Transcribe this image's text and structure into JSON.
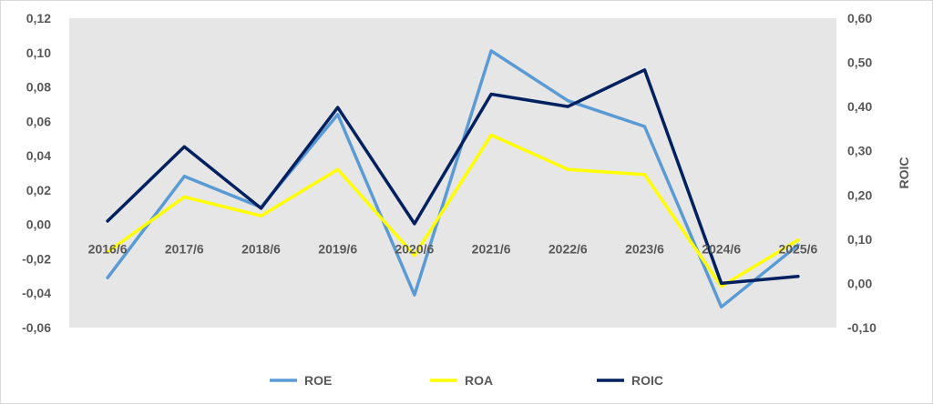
{
  "chart_data": {
    "type": "line",
    "categories": [
      "2016/6",
      "2017/6",
      "2018/6",
      "2019/6",
      "2020/6",
      "2021/6",
      "2022/6",
      "2023/6",
      "2024/6",
      "2025/6"
    ],
    "series": [
      {
        "name": "ROE",
        "axis": "left",
        "color": "#5B9BD5",
        "values": [
          -0.031,
          0.028,
          0.01,
          0.064,
          -0.041,
          0.101,
          0.072,
          0.057,
          -0.048,
          -0.012
        ]
      },
      {
        "name": "ROA",
        "axis": "left",
        "color": "#FFFF00",
        "values": [
          -0.016,
          0.016,
          0.005,
          0.032,
          -0.018,
          0.052,
          0.032,
          0.029,
          -0.036,
          -0.009
        ]
      },
      {
        "name": "ROIC",
        "axis": "right",
        "color": "#002060",
        "values": [
          0.141,
          0.309,
          0.17,
          0.398,
          0.135,
          0.428,
          0.4,
          0.483,
          0.0,
          0.016
        ]
      }
    ],
    "y_left": {
      "ylim": [
        -0.06,
        0.12
      ],
      "ticks": [
        0.12,
        0.1,
        0.08,
        0.06,
        0.04,
        0.02,
        0.0,
        -0.02,
        -0.04,
        -0.06
      ],
      "tick_labels": [
        "0,12",
        "0,10",
        "0,08",
        "0,06",
        "0,04",
        "0,02",
        "0,00",
        "-0,02",
        "-0,04",
        "-0,06"
      ],
      "label": ""
    },
    "y_right": {
      "ylim": [
        -0.1,
        0.6
      ],
      "ticks": [
        0.6,
        0.5,
        0.4,
        0.3,
        0.2,
        0.1,
        0.0,
        -0.1
      ],
      "tick_labels": [
        "0,60",
        "0,50",
        "0,40",
        "0,30",
        "0,20",
        "0,10",
        "0,00",
        "-0,10"
      ],
      "label": "ROIC"
    },
    "title": "",
    "xlabel": "",
    "grid": false,
    "plot_background": "#E7E6E6",
    "legend_position": "bottom"
  }
}
